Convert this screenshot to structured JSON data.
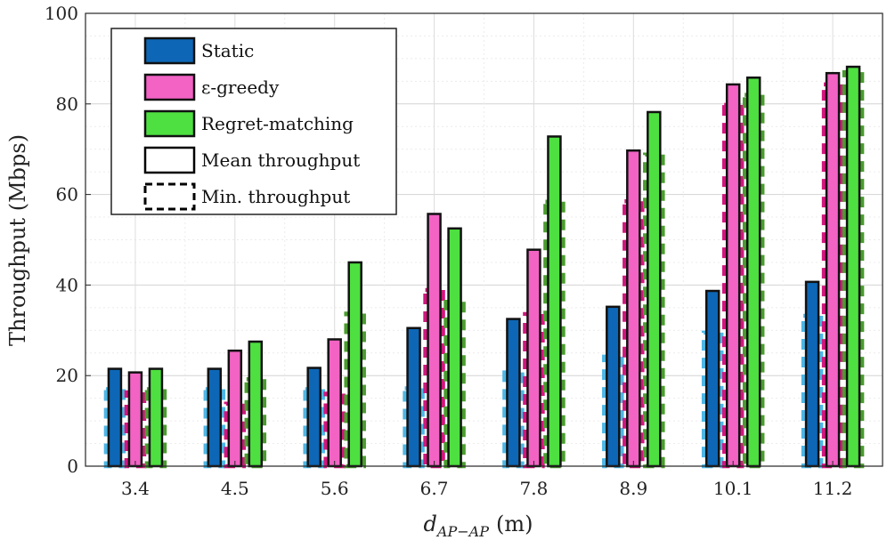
{
  "chart_data": {
    "type": "bar",
    "title": "",
    "xlabel": "d",
    "xlabel_sub": "AP−AP",
    "xlabel_unit": "(m)",
    "ylabel": "Throughput (Mbps)",
    "ylim": [
      0,
      100
    ],
    "yticks": [
      0,
      20,
      40,
      60,
      80,
      100
    ],
    "grid": true,
    "legend_position": "top-left",
    "categories": [
      "3.4",
      "4.5",
      "5.6",
      "6.7",
      "7.8",
      "8.9",
      "10.1",
      "11.2"
    ],
    "series": [
      {
        "name": "Static",
        "fill": "#0d67b6",
        "min_color": "#4db7e6",
        "mean": [
          21.5,
          21.5,
          21.7,
          30.5,
          32.5,
          35.2,
          38.7,
          40.7
        ],
        "min": [
          17.0,
          17.0,
          17.0,
          17.2,
          20.7,
          24.2,
          29.5,
          33.2
        ]
      },
      {
        "name": "ε-greedy",
        "fill": "#f263c4",
        "min_color": "#d3157e",
        "mean": [
          20.7,
          25.5,
          28.0,
          55.7,
          47.8,
          69.7,
          84.3,
          86.8
        ],
        "min": [
          16.3,
          13.8,
          16.0,
          38.9,
          33.6,
          58.5,
          79.8,
          84.3
        ]
      },
      {
        "name": "Regret-matching",
        "fill": "#4ee040",
        "min_color": "#4a9c2e",
        "mean": [
          21.5,
          27.5,
          45.0,
          52.5,
          72.8,
          78.2,
          85.8,
          88.2
        ],
        "min": [
          17.0,
          19.2,
          33.7,
          36.3,
          58.4,
          68.8,
          82.0,
          87.0
        ]
      }
    ],
    "legend": {
      "entries": [
        {
          "label": "Static",
          "kind": "fill",
          "color": "#0d67b6"
        },
        {
          "label": "ε-greedy",
          "kind": "fill",
          "color": "#f263c4"
        },
        {
          "label": "Regret-matching",
          "kind": "fill",
          "color": "#4ee040"
        },
        {
          "label": "Mean throughput",
          "kind": "solid-outline",
          "color": "#000000"
        },
        {
          "label": "Min. throughput",
          "kind": "dashed-outline",
          "color": "#000000"
        }
      ]
    }
  }
}
